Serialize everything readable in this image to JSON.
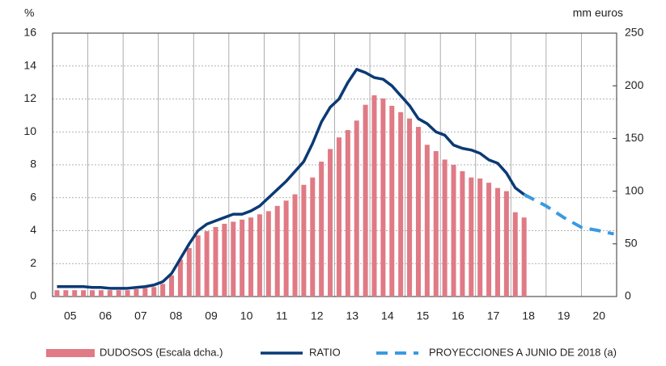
{
  "chart_data": {
    "type": "bar-line",
    "ylabel": "%",
    "y2label": "mm euros",
    "xlim": [
      2005,
      2021
    ],
    "xticks": [
      {
        "value": 2005.5,
        "label": "05"
      },
      {
        "value": 2006.5,
        "label": "06"
      },
      {
        "value": 2007.5,
        "label": "07"
      },
      {
        "value": 2008.5,
        "label": "08"
      },
      {
        "value": 2009.5,
        "label": "09"
      },
      {
        "value": 2010.5,
        "label": "10"
      },
      {
        "value": 2011.5,
        "label": "11"
      },
      {
        "value": 2012.5,
        "label": "12"
      },
      {
        "value": 2013.5,
        "label": "13"
      },
      {
        "value": 2014.5,
        "label": "14"
      },
      {
        "value": 2015.5,
        "label": "15"
      },
      {
        "value": 2016.5,
        "label": "16"
      },
      {
        "value": 2017.5,
        "label": "17"
      },
      {
        "value": 2018.5,
        "label": "18"
      },
      {
        "value": 2019.5,
        "label": "19"
      },
      {
        "value": 2020.5,
        "label": "20"
      }
    ],
    "xgrid": [
      2006,
      2007,
      2008,
      2009,
      2010,
      2011,
      2012,
      2013,
      2014,
      2015,
      2016,
      2017,
      2018,
      2019,
      2020
    ],
    "ylim": [
      0,
      16
    ],
    "yticks": [
      0,
      2,
      4,
      6,
      8,
      10,
      12,
      14,
      16
    ],
    "y2lim": [
      0,
      250
    ],
    "y2ticks": [
      0,
      50,
      100,
      150,
      200,
      250
    ],
    "grid": true,
    "series": [
      {
        "name": "DUDOSOS (Escala dcha.)",
        "type": "bar",
        "axis": "y2",
        "color": "#e07a85",
        "x": [
          2005.125,
          2005.375,
          2005.625,
          2005.875,
          2006.125,
          2006.375,
          2006.625,
          2006.875,
          2007.125,
          2007.375,
          2007.625,
          2007.875,
          2008.125,
          2008.375,
          2008.625,
          2008.875,
          2009.125,
          2009.375,
          2009.625,
          2009.875,
          2010.125,
          2010.375,
          2010.625,
          2010.875,
          2011.125,
          2011.375,
          2011.625,
          2011.875,
          2012.125,
          2012.375,
          2012.625,
          2012.875,
          2013.125,
          2013.375,
          2013.625,
          2013.875,
          2014.125,
          2014.375,
          2014.625,
          2014.875,
          2015.125,
          2015.375,
          2015.625,
          2015.875,
          2016.125,
          2016.375,
          2016.625,
          2016.875,
          2017.125,
          2017.375,
          2017.625,
          2017.875,
          2018.125,
          2018.375
        ],
        "values": [
          6,
          6,
          6,
          6,
          6,
          6,
          6,
          6,
          6,
          7,
          8,
          9,
          12,
          20,
          35,
          46,
          58,
          62,
          66,
          69,
          71,
          73,
          75,
          78,
          81,
          86,
          91,
          97,
          106,
          113,
          128,
          140,
          151,
          158,
          167,
          182,
          191,
          188,
          181,
          175,
          169,
          161,
          144,
          138,
          130,
          125,
          119,
          113,
          112,
          108,
          103,
          100,
          80,
          75
        ]
      },
      {
        "name": "RATIO",
        "type": "line",
        "color": "#0b3a75",
        "x": [
          2005.125,
          2005.375,
          2005.625,
          2005.875,
          2006.125,
          2006.375,
          2006.625,
          2006.875,
          2007.125,
          2007.375,
          2007.625,
          2007.875,
          2008.125,
          2008.375,
          2008.625,
          2008.875,
          2009.125,
          2009.375,
          2009.625,
          2009.875,
          2010.125,
          2010.375,
          2010.625,
          2010.875,
          2011.125,
          2011.375,
          2011.625,
          2011.875,
          2012.125,
          2012.375,
          2012.625,
          2012.875,
          2013.125,
          2013.375,
          2013.625,
          2013.875,
          2014.125,
          2014.375,
          2014.625,
          2014.875,
          2015.125,
          2015.375,
          2015.625,
          2015.875,
          2016.125,
          2016.375,
          2016.625,
          2016.875,
          2017.125,
          2017.375,
          2017.625,
          2017.875,
          2018.125,
          2018.375
        ],
        "values": [
          0.6,
          0.6,
          0.6,
          0.6,
          0.55,
          0.55,
          0.5,
          0.5,
          0.5,
          0.55,
          0.6,
          0.7,
          0.9,
          1.4,
          2.3,
          3.2,
          4.0,
          4.4,
          4.6,
          4.8,
          5.0,
          5.0,
          5.2,
          5.5,
          6.0,
          6.5,
          7.0,
          7.6,
          8.2,
          9.3,
          10.6,
          11.5,
          12.0,
          13.0,
          13.8,
          13.6,
          13.3,
          13.2,
          12.8,
          12.2,
          11.6,
          10.8,
          10.5,
          10.0,
          9.8,
          9.2,
          9.0,
          8.9,
          8.7,
          8.3,
          8.1,
          7.5,
          6.6,
          6.2
        ]
      },
      {
        "name": "PROYECCIONES A JUNIO DE 2018 (a)",
        "type": "line",
        "dashed": true,
        "color": "#3a9ae0",
        "x": [
          2018.375,
          2019,
          2019.5,
          2020,
          2020.5,
          2020.92
        ],
        "values": [
          6.2,
          5.5,
          4.8,
          4.2,
          4.0,
          3.8
        ]
      }
    ]
  }
}
